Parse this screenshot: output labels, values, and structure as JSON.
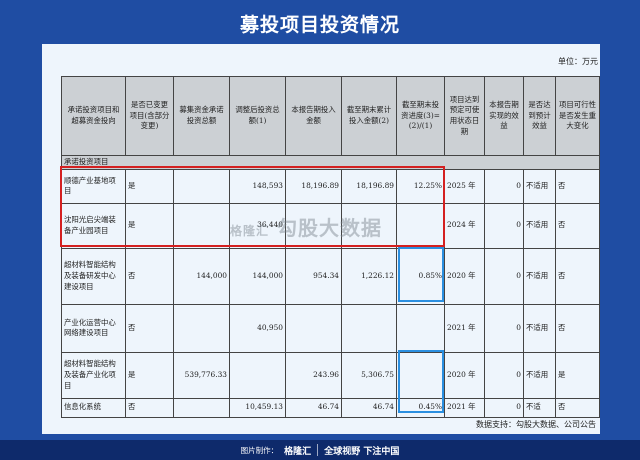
{
  "title": "募投项目投资情况",
  "unit": "单位：万元",
  "table": {
    "headers": [
      "承诺投资项目和超募资金投向",
      "是否已变更项目(含部分变更)",
      "募集资金承诺投资总额",
      "调整后投资总额(1)",
      "本报告期投入金额",
      "截至期末累计投入金额(2)",
      "截至期末投资进度(3)=(2)/(1)",
      "项目达到预定可使用状态日期",
      "本报告期实现的效益",
      "是否达到预计效益",
      "项目可行性是否发生重大变化"
    ],
    "section": "承诺投资项目",
    "rows": [
      [
        "顺德产业基地项目",
        "是",
        "",
        "148,593",
        "18,196.89",
        "18,196.89",
        "12.25%",
        "2025 年",
        "0",
        "不适用",
        "否"
      ],
      [
        "沈阳光启尖端装备产业园项目",
        "是",
        "",
        "36,440",
        "",
        "",
        "",
        "2024 年",
        "0",
        "不适用",
        "否"
      ],
      [
        "超材料智能结构及装备研发中心建设项目",
        "否",
        "144,000",
        "144,000",
        "954.34",
        "1,226.12",
        "0.85%",
        "2020 年",
        "0",
        "不适用",
        "否"
      ],
      [
        "产业化运营中心网络建设项目",
        "否",
        "",
        "40,950",
        "",
        "",
        "",
        "2021 年",
        "0",
        "不适用",
        "否"
      ],
      [
        "超材料智能结构及装备产业化项目",
        "是",
        "539,776.33",
        "",
        "243.96",
        "5,306.75",
        "",
        "2020 年",
        "0",
        "不适用",
        "是"
      ],
      [
        "信息化系统",
        "否",
        "",
        "10,459.13",
        "46.74",
        "46.74",
        "0.45%",
        "2021 年",
        "0",
        "不适",
        "否"
      ]
    ]
  },
  "watermark": {
    "brand": "格隆汇",
    "text": "勾股大数据"
  },
  "source": "数据支持：勾股大数据、公司公告",
  "footer": {
    "made_by": "图片制作：",
    "brand": "格隆汇",
    "slogan": "全球视野 下注中国"
  },
  "colors": {
    "background": "#1f4da3",
    "highlight_red": "#d42020",
    "highlight_blue": "#2a8fe0"
  }
}
